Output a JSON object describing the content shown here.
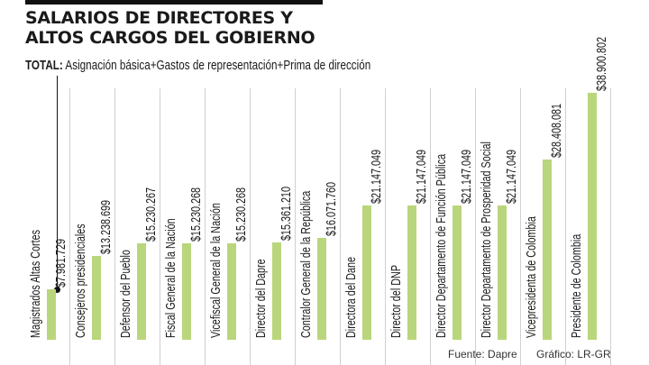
{
  "header": {
    "title_line1": "SALARIOS DE DIRECTORES Y",
    "title_line2": "ALTOS CARGOS DEL GOBIERNO",
    "subtitle_bold": "TOTAL:",
    "subtitle_rest": " Asignación básica+Gastos de representación+Prima de dirección"
  },
  "footer": {
    "source": "Fuente: Dapre",
    "credit": "Gráfico: LR-GR"
  },
  "colors": {
    "bar": "#b9d67c",
    "separator": "#d0d0d0",
    "text": "#1a1a1a"
  },
  "chart_data": {
    "type": "bar",
    "title": "SALARIOS DE DIRECTORES Y ALTOS CARGOS DEL GOBIERNO",
    "subtitle": "TOTAL: Asignación básica+Gastos de representación+Prima de dirección",
    "xlabel": "",
    "ylabel": "",
    "categories": [
      "Magistrados Altas Cortes",
      "Consejeros presidenciales",
      "Defensor del Pueblo",
      "Fiscal General de la Nación",
      "Vicefiscal General de la Nación",
      "Director del Dapre",
      "Contralor General de la República",
      "Directora del Dane",
      "Director del DNP",
      "Director Departamento de Función Pública",
      "Director Departamento de Prosperidad Social",
      "Vicepresidenta de Colombia",
      "Presidente de Colombia"
    ],
    "values": [
      7981729,
      13238699,
      15230267,
      15230268,
      15230268,
      15361210,
      16071760,
      21147049,
      21147049,
      21147049,
      21147049,
      28408081,
      38900802
    ],
    "value_labels": [
      "$7.981.729",
      "$13.238.699",
      "$15.230.267",
      "$15.230.268",
      "$15.230.268",
      "$15.361.210",
      "$16.071.760",
      "$21.147.049",
      "$21.147.049",
      "$21.147.049",
      "$21.147.049",
      "$28.408.081",
      "$38.900.802"
    ],
    "grid": false,
    "legend": "none",
    "orientation": "vertical bars with rotated labels"
  }
}
